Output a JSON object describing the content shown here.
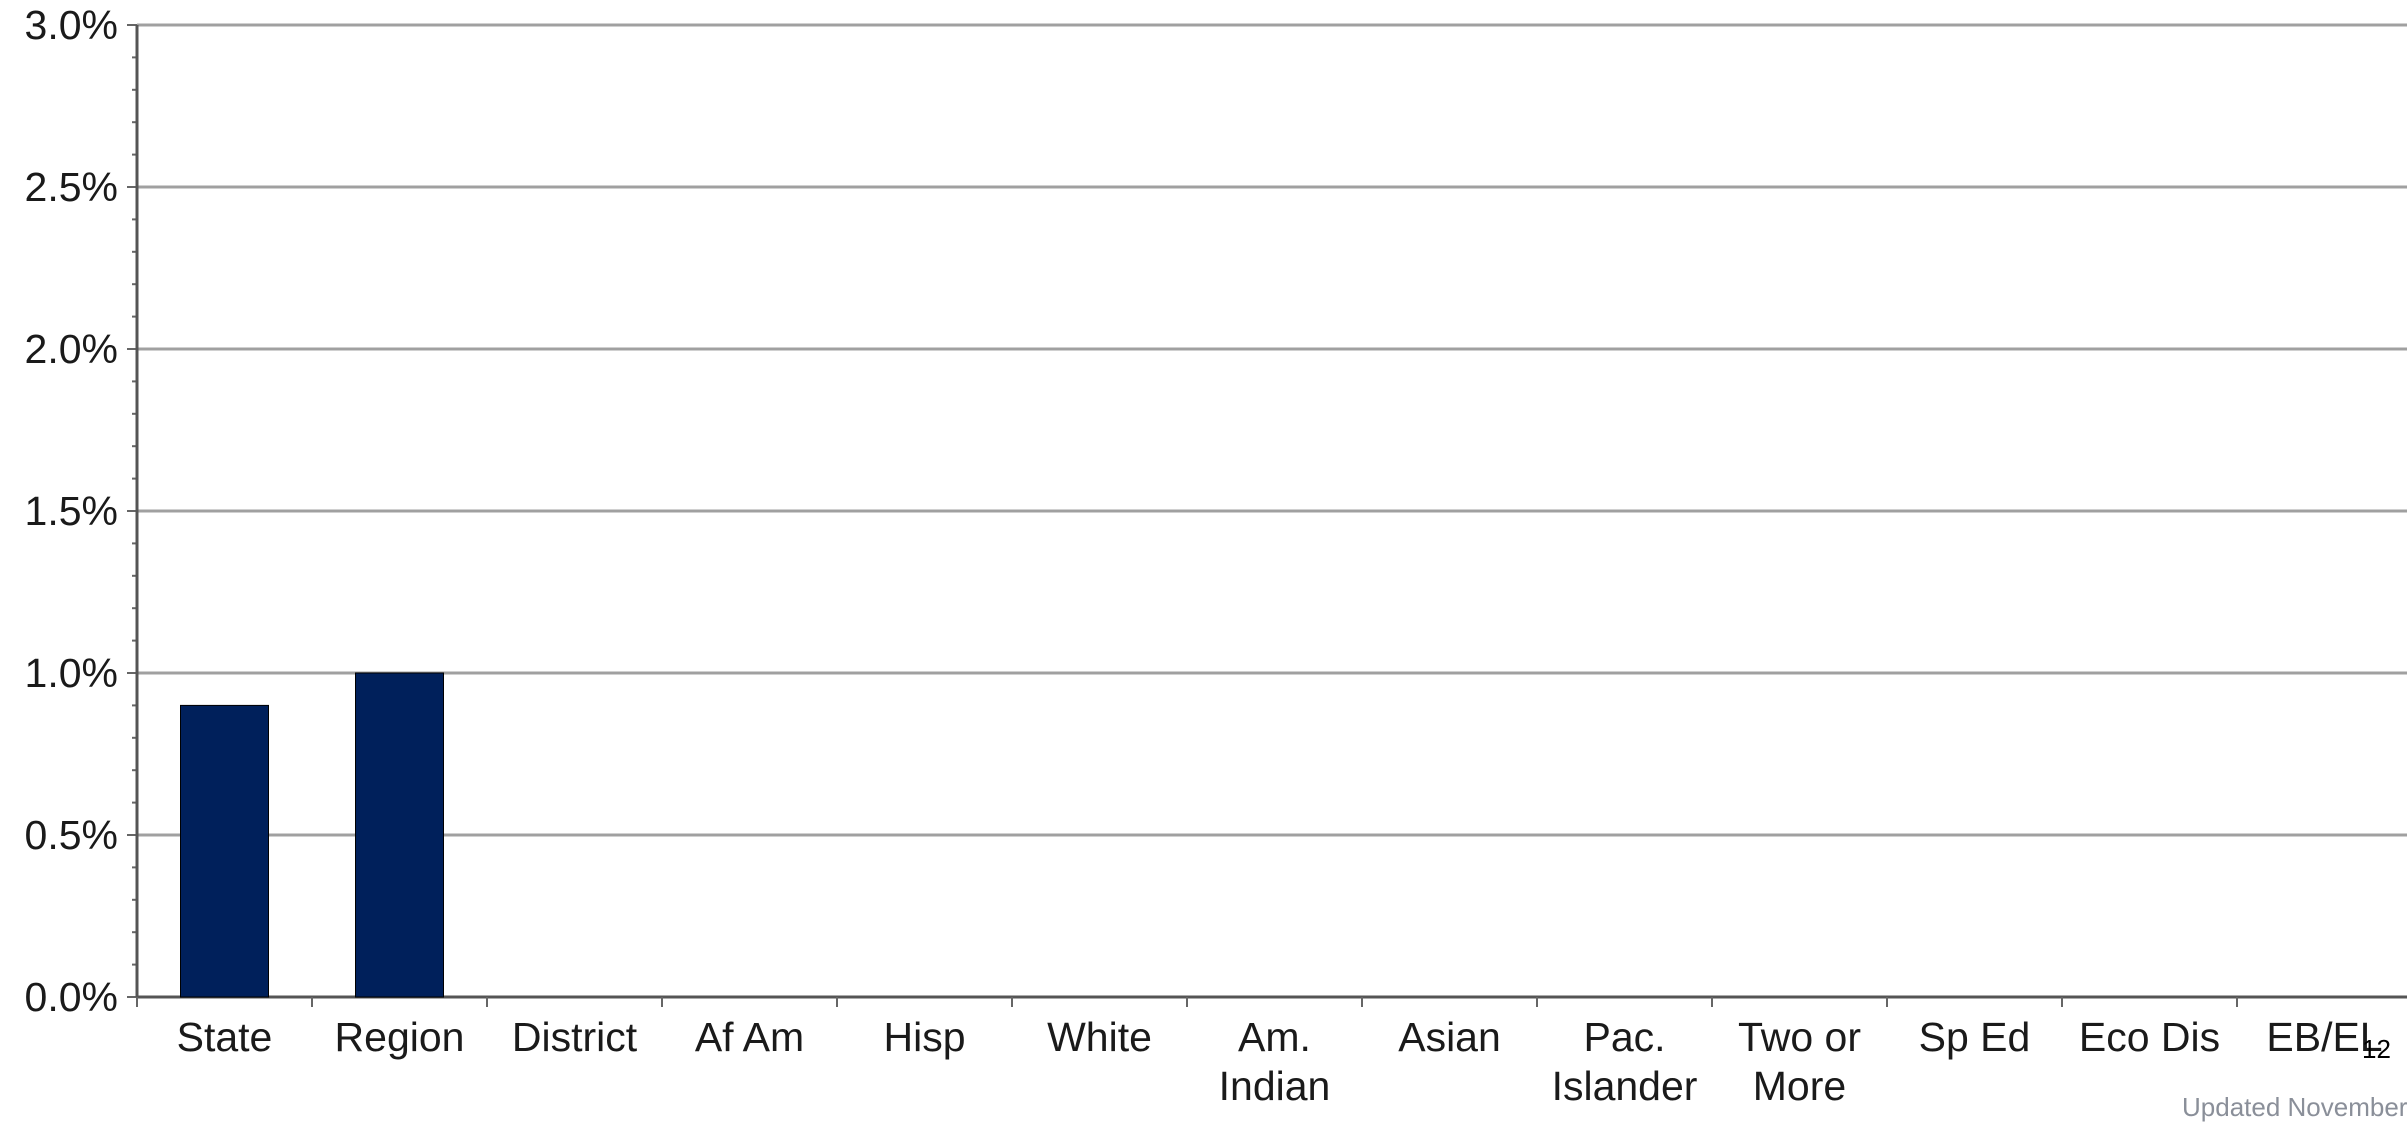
{
  "chart_data": {
    "type": "bar",
    "categories": [
      "State",
      "Region",
      "District",
      "Af Am",
      "Hisp",
      "White",
      "Am. Indian",
      "Asian",
      "Pac. Islander",
      "Two or More",
      "Sp Ed",
      "Eco Dis",
      "EB/EL"
    ],
    "category_label_lines": [
      [
        "State"
      ],
      [
        "Region"
      ],
      [
        "District"
      ],
      [
        "Af Am"
      ],
      [
        "Hisp"
      ],
      [
        "White"
      ],
      [
        "Am.",
        "Indian"
      ],
      [
        "Asian"
      ],
      [
        "Pac.",
        "Islander"
      ],
      [
        "Two or",
        "More"
      ],
      [
        "Sp Ed"
      ],
      [
        "Eco Dis"
      ],
      [
        "EB/EL"
      ]
    ],
    "values": [
      0.9,
      1.0,
      null,
      null,
      null,
      null,
      null,
      null,
      null,
      null,
      null,
      null,
      null
    ],
    "ylim": [
      0,
      3.0
    ],
    "yticks": [
      0.0,
      0.5,
      1.0,
      1.5,
      2.0,
      2.5,
      3.0
    ],
    "ytick_labels": [
      "0.0%",
      "0.5%",
      "1.0%",
      "1.5%",
      "2.0%",
      "2.5%",
      "3.0%"
    ],
    "title": "",
    "xlabel": "",
    "ylabel": "",
    "grid": true,
    "bar_color": "#00205b",
    "gridline_color": "#a0a0a0"
  },
  "footer": {
    "page_number": "12",
    "note": "Updated November"
  }
}
